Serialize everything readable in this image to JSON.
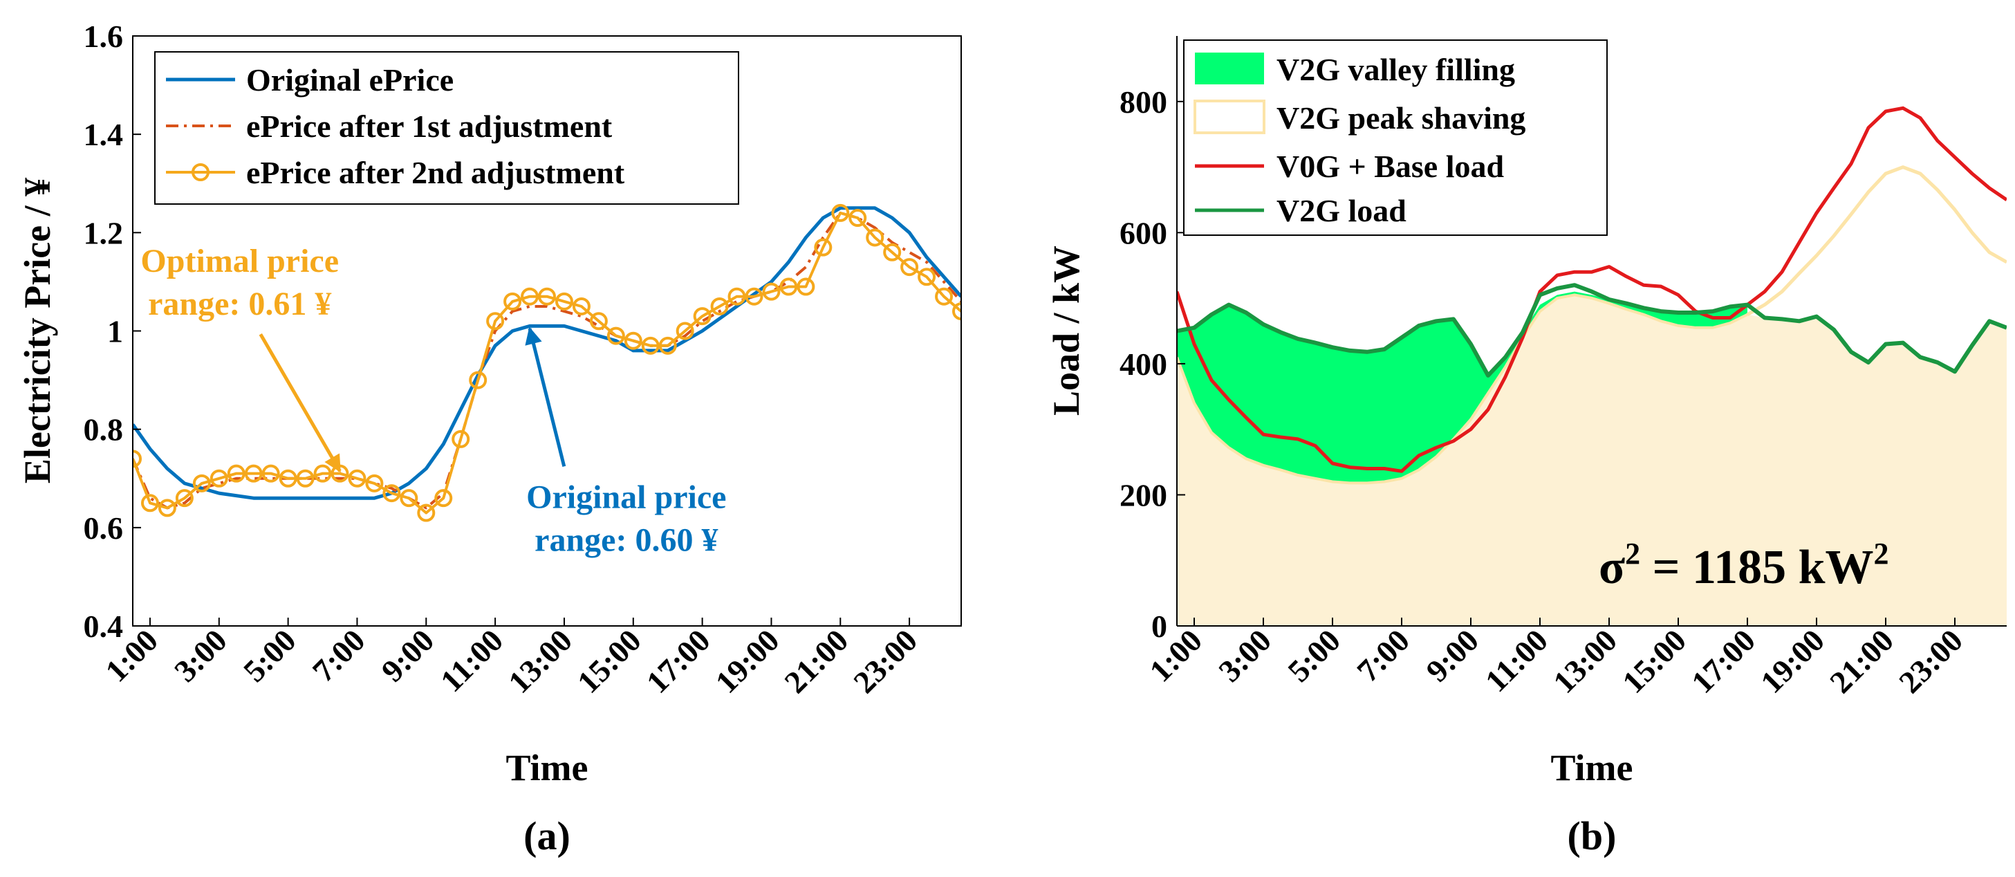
{
  "chart_data": [
    {
      "type": "line",
      "panel_label": "(a)",
      "xlabel": "Time",
      "ylabel": "Electricity Price / ¥",
      "ylim": [
        0.4,
        1.6
      ],
      "xlim": [
        0.5,
        24.5
      ],
      "y_ticks": [
        "0.4",
        "0.6",
        "0.8",
        "1",
        "1.2",
        "1.4",
        "1.6"
      ],
      "y_tick_values": [
        0.4,
        0.6,
        0.8,
        1.0,
        1.2,
        1.4,
        1.6
      ],
      "x_ticks": [
        "1:00",
        "3:00",
        "5:00",
        "7:00",
        "9:00",
        "11:00",
        "13:00",
        "15:00",
        "17:00",
        "19:00",
        "21:00",
        "23:00"
      ],
      "x_tick_values": [
        1,
        3,
        5,
        7,
        9,
        11,
        13,
        15,
        17,
        19,
        21,
        23
      ],
      "legend_position": "top-left",
      "series": [
        {
          "name": "Original ePrice",
          "color": "#0072BD",
          "style": "solid",
          "x": [
            0.5,
            1,
            1.5,
            2,
            3,
            4,
            5,
            6,
            7,
            7.5,
            8,
            8.5,
            9,
            9.5,
            10,
            10.5,
            11,
            11.5,
            12,
            12.5,
            13,
            13.5,
            14,
            14.5,
            15,
            15.5,
            16,
            16.5,
            17,
            18,
            19,
            19.5,
            20,
            20.5,
            21,
            21.5,
            22,
            22.5,
            23,
            23.5,
            24,
            24.5
          ],
          "values": [
            0.81,
            0.76,
            0.72,
            0.69,
            0.67,
            0.66,
            0.66,
            0.66,
            0.66,
            0.66,
            0.67,
            0.69,
            0.72,
            0.77,
            0.84,
            0.91,
            0.97,
            1.0,
            1.01,
            1.01,
            1.01,
            1.0,
            0.99,
            0.98,
            0.96,
            0.96,
            0.96,
            0.98,
            1.0,
            1.05,
            1.1,
            1.14,
            1.19,
            1.23,
            1.25,
            1.25,
            1.25,
            1.23,
            1.2,
            1.15,
            1.11,
            1.07
          ]
        },
        {
          "name": "ePrice after 1st adjustment",
          "color": "#D95319",
          "style": "dash-dot",
          "x": [
            0.5,
            1,
            1.5,
            2,
            2.5,
            3,
            3.5,
            4,
            4.5,
            5,
            5.5,
            6,
            6.5,
            7,
            7.5,
            8,
            8.5,
            9,
            9.5,
            10,
            10.5,
            11,
            11.5,
            12,
            12.5,
            13,
            13.5,
            14,
            14.5,
            15,
            15.5,
            16,
            16.5,
            17,
            17.5,
            18,
            18.5,
            19,
            19.5,
            20,
            20.5,
            21,
            21.5,
            22,
            22.5,
            23,
            23.5,
            24,
            24.5
          ],
          "values": [
            0.74,
            0.66,
            0.64,
            0.65,
            0.68,
            0.69,
            0.7,
            0.7,
            0.7,
            0.7,
            0.7,
            0.7,
            0.7,
            0.7,
            0.69,
            0.68,
            0.66,
            0.64,
            0.67,
            0.78,
            0.9,
            1.0,
            1.04,
            1.05,
            1.05,
            1.04,
            1.03,
            1.01,
            0.99,
            0.98,
            0.97,
            0.97,
            0.99,
            1.02,
            1.04,
            1.06,
            1.07,
            1.08,
            1.1,
            1.13,
            1.19,
            1.24,
            1.23,
            1.21,
            1.18,
            1.16,
            1.14,
            1.1,
            1.06
          ]
        },
        {
          "name": "ePrice after 2nd adjustment",
          "color": "#F5A81C",
          "style": "solid-circle-markers",
          "x": [
            0.5,
            1,
            1.5,
            2,
            2.5,
            3,
            3.5,
            4,
            4.5,
            5,
            5.5,
            6,
            6.5,
            7,
            7.5,
            8,
            8.5,
            9,
            9.5,
            10,
            10.5,
            11,
            11.5,
            12,
            12.5,
            13,
            13.5,
            14,
            14.5,
            15,
            15.5,
            16,
            16.5,
            17,
            17.5,
            18,
            18.5,
            19,
            19.5,
            20,
            20.5,
            21,
            21.5,
            22,
            22.5,
            23,
            23.5,
            24,
            24.5
          ],
          "values": [
            0.74,
            0.65,
            0.64,
            0.66,
            0.69,
            0.7,
            0.71,
            0.71,
            0.71,
            0.7,
            0.7,
            0.71,
            0.71,
            0.7,
            0.69,
            0.67,
            0.66,
            0.63,
            0.66,
            0.78,
            0.9,
            1.02,
            1.06,
            1.07,
            1.07,
            1.06,
            1.05,
            1.02,
            0.99,
            0.98,
            0.97,
            0.97,
            1.0,
            1.03,
            1.05,
            1.07,
            1.07,
            1.08,
            1.09,
            1.09,
            1.17,
            1.24,
            1.23,
            1.19,
            1.16,
            1.13,
            1.11,
            1.07,
            1.04
          ]
        }
      ],
      "annotations": [
        {
          "lines": [
            "Optimal price",
            "range: 0.61 ¥"
          ],
          "color": "#F5A81C",
          "arrow_to": {
            "x": 6.5,
            "y": 0.715
          },
          "text_at": {
            "x": 3.6,
            "y": 1.12
          }
        },
        {
          "lines": [
            "Original price",
            "range: 0.60 ¥"
          ],
          "color": "#0072BD",
          "arrow_to": {
            "x": 12.0,
            "y": 1.005
          },
          "text_at": {
            "x": 14.8,
            "y": 0.64
          }
        }
      ]
    },
    {
      "type": "area",
      "panel_label": "(b)",
      "xlabel": "Time",
      "ylabel": "Load / kW",
      "ylim": [
        0,
        900
      ],
      "xlim": [
        0.5,
        24.5
      ],
      "y_ticks": [
        "0",
        "200",
        "400",
        "600",
        "800"
      ],
      "y_tick_values": [
        0,
        200,
        400,
        600,
        800
      ],
      "x_ticks": [
        "1:00",
        "3:00",
        "5:00",
        "7:00",
        "9:00",
        "11:00",
        "13:00",
        "15:00",
        "17:00",
        "19:00",
        "21:00",
        "23:00"
      ],
      "x_tick_values": [
        1,
        3,
        5,
        7,
        9,
        11,
        13,
        15,
        17,
        19,
        21,
        23
      ],
      "legend_position": "top-left",
      "annotation": {
        "base": "σ",
        "sup1": "2",
        "mid": " = 1185 kW",
        "sup2": "2"
      },
      "base_area_color": "#FDF1D4",
      "series": [
        {
          "name": "V2G valley filling",
          "color": "#00FF72",
          "style": "filled-area",
          "x": [
            0.5,
            1,
            1.5,
            2,
            2.5,
            3,
            3.5,
            4,
            4.5,
            5,
            5.5,
            6,
            6.5,
            7,
            7.5,
            8,
            8.5,
            9,
            9.5,
            10,
            10.5,
            11,
            11.5,
            12,
            12.5,
            13,
            13.5,
            14,
            14.5,
            15,
            15.5,
            16,
            16.5,
            17
          ],
          "upper": [
            450,
            455,
            475,
            490,
            478,
            460,
            448,
            438,
            432,
            425,
            420,
            418,
            422,
            440,
            458,
            465,
            468,
            430,
            382,
            410,
            448,
            490,
            505,
            510,
            505,
            498,
            492,
            485,
            480,
            478,
            478,
            480,
            485,
            490
          ],
          "lower": [
            410,
            340,
            295,
            272,
            255,
            245,
            238,
            230,
            225,
            220,
            218,
            218,
            220,
            225,
            238,
            258,
            285,
            315,
            355,
            395,
            440,
            480,
            500,
            505,
            500,
            492,
            483,
            475,
            465,
            458,
            455,
            455,
            462,
            475
          ]
        },
        {
          "name": "V2G peak shaving",
          "color": "#FCE4A8",
          "style": "outline-area",
          "x": [
            17,
            17.5,
            18,
            18.5,
            19,
            19.5,
            20,
            20.5,
            21,
            21.5,
            22,
            22.5,
            23,
            23.5,
            24,
            24.5
          ],
          "upper": [
            475,
            490,
            510,
            538,
            565,
            595,
            628,
            662,
            690,
            700,
            690,
            665,
            635,
            600,
            570,
            555
          ],
          "lower": [
            475,
            468,
            465,
            460,
            450,
            438,
            425,
            425,
            420,
            410,
            405,
            395,
            400,
            430,
            450,
            450
          ]
        },
        {
          "name": "V0G + Base load",
          "color": "#E31A1C",
          "style": "solid",
          "x": [
            0.5,
            1,
            1.5,
            2,
            2.5,
            3,
            3.5,
            4,
            4.5,
            5,
            5.5,
            6,
            6.5,
            7,
            7.5,
            8,
            8.5,
            9,
            9.5,
            10,
            10.5,
            11,
            11.5,
            12,
            12.5,
            13,
            13.5,
            14,
            14.5,
            15,
            15.5,
            16,
            16.5,
            17,
            17.5,
            18,
            18.5,
            19,
            19.5,
            20,
            20.5,
            21,
            21.5,
            22,
            22.5,
            23,
            23.5,
            24,
            24.5
          ],
          "values": [
            510,
            430,
            375,
            345,
            318,
            292,
            288,
            285,
            275,
            248,
            242,
            240,
            240,
            236,
            260,
            272,
            282,
            300,
            330,
            380,
            440,
            510,
            535,
            540,
            540,
            548,
            533,
            520,
            518,
            505,
            480,
            470,
            470,
            490,
            510,
            540,
            585,
            630,
            668,
            705,
            760,
            785,
            790,
            775,
            740,
            715,
            690,
            668,
            650
          ]
        },
        {
          "name": "V2G load",
          "color": "#1A9641",
          "style": "solid",
          "x": [
            0.5,
            1,
            1.5,
            2,
            2.5,
            3,
            3.5,
            4,
            4.5,
            5,
            5.5,
            6,
            6.5,
            7,
            7.5,
            8,
            8.5,
            9,
            9.5,
            10,
            10.5,
            11,
            11.5,
            12,
            12.5,
            13,
            13.5,
            14,
            14.5,
            15,
            15.5,
            16,
            16.5,
            17,
            17.5,
            18,
            18.5,
            19,
            19.5,
            20,
            20.5,
            21,
            21.5,
            22,
            22.5,
            23,
            23.5,
            24,
            24.5
          ],
          "values": [
            450,
            455,
            475,
            490,
            478,
            460,
            448,
            438,
            432,
            425,
            420,
            418,
            422,
            440,
            458,
            465,
            468,
            430,
            382,
            410,
            448,
            505,
            515,
            520,
            510,
            498,
            492,
            485,
            480,
            478,
            478,
            480,
            487,
            490,
            470,
            468,
            465,
            472,
            452,
            418,
            402,
            430,
            432,
            410,
            402,
            388,
            428,
            465,
            455
          ]
        }
      ]
    }
  ]
}
